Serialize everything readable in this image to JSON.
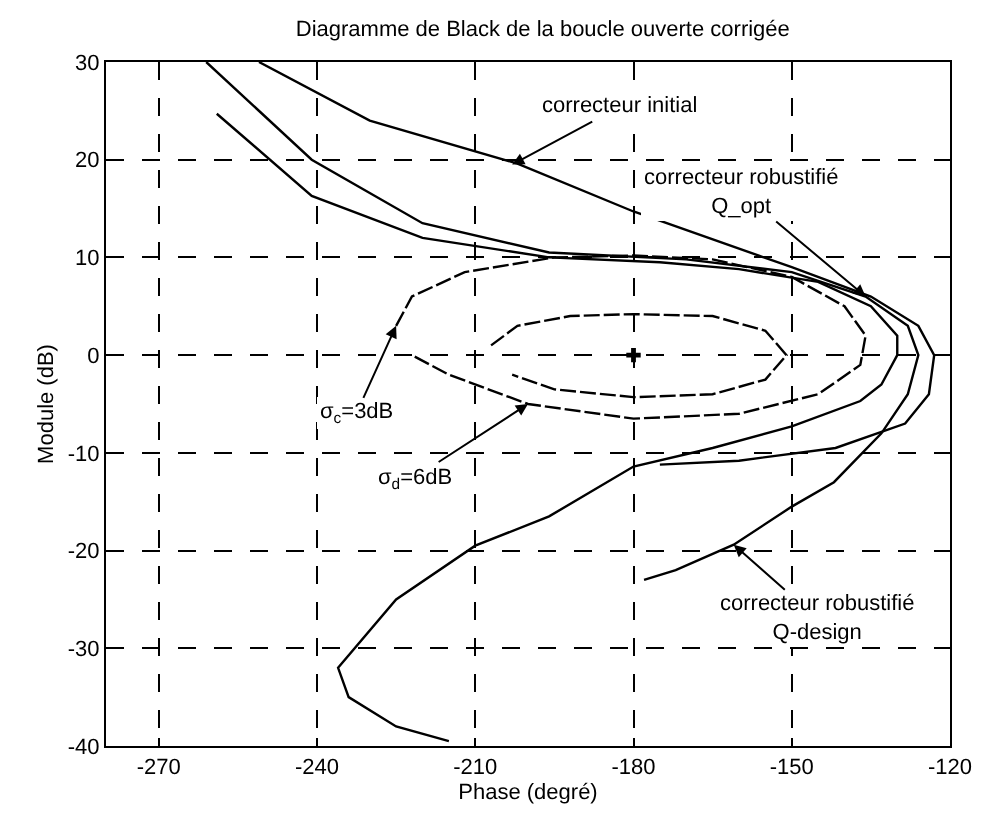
{
  "chart_data": {
    "type": "line",
    "title": "Diagramme de Black de la boucle ouverte corrigée",
    "xlabel": "Phase (degré)",
    "ylabel": "Module (dB)",
    "xlim": [
      -280,
      -120
    ],
    "xticks": [
      -270,
      -240,
      -210,
      -180,
      -150,
      -120
    ],
    "ylim": [
      -40,
      30
    ],
    "yticks": [
      -40,
      -30,
      -20,
      -10,
      0,
      10,
      20,
      30
    ],
    "grid": true,
    "marker": "none",
    "series": [
      {
        "color": "#000000",
        "line_style": "solid",
        "x": [
          -251,
          -230,
          -202,
          -180,
          -150,
          -135,
          -126,
          -123,
          -124,
          -128.5,
          -141.7,
          -160,
          -175
        ],
        "values": [
          30,
          24,
          19.6,
          14.7,
          9,
          6,
          3,
          0,
          -4,
          -7,
          -9.5,
          -10.8,
          -11.2
        ]
      },
      {
        "color": "#000000",
        "line_style": "solid",
        "x": [
          -261,
          -241,
          -220,
          -196,
          -170,
          -150,
          -136,
          -128,
          -126,
          -128,
          -133,
          -142,
          -150,
          -161,
          -172,
          -178
        ],
        "values": [
          30,
          20,
          13.5,
          10.5,
          9.8,
          8.5,
          6,
          3,
          0,
          -4,
          -8,
          -13,
          -15.5,
          -19.4,
          -22,
          -23
        ]
      },
      {
        "color": "#000000",
        "line_style": "solid",
        "x": [
          -259,
          -241,
          -220,
          -196,
          -175,
          -160,
          -145,
          -135,
          -130,
          -130,
          -133,
          -137,
          -150,
          -165,
          -180,
          -196,
          -210,
          -225,
          -236,
          -234,
          -225,
          -215
        ],
        "values": [
          24.7,
          16.3,
          12,
          10,
          9.5,
          8.8,
          7.5,
          5,
          2,
          0,
          -3,
          -4.7,
          -7.3,
          -9.5,
          -11.4,
          -16.5,
          -19.5,
          -25,
          -32,
          -35,
          -38,
          -39.5
        ]
      },
      {
        "color": "#000000",
        "line_style": "dashed",
        "x": [
          -225,
          -222,
          -212,
          -195,
          -180,
          -165,
          -150,
          -140,
          -136,
          -137,
          -145,
          -160,
          -180,
          -200,
          -215,
          -222
        ],
        "values": [
          3,
          6,
          8.5,
          10,
          10.2,
          9.8,
          8,
          5,
          2,
          -1,
          -4,
          -6,
          -6.5,
          -5,
          -2,
          0
        ]
      },
      {
        "color": "#000000",
        "line_style": "dashed",
        "x": [
          -207,
          -202,
          -192,
          -180,
          -165,
          -155,
          -151,
          -155,
          -165,
          -180,
          -195,
          -203
        ],
        "values": [
          1,
          3,
          4,
          4.2,
          4,
          2.5,
          0,
          -2.5,
          -4,
          -4.3,
          -3.5,
          -2
        ]
      },
      {
        "color": "#000000",
        "type": "scatter",
        "marker": "cross",
        "x": [
          -180
        ],
        "values": [
          0
        ]
      }
    ],
    "annotations": [
      {
        "text": "correcteur initial",
        "x": -203,
        "y": 19.5
      },
      {
        "text": "correcteur robustifié\nQ_opt",
        "x": -136,
        "y": 6
      },
      {
        "text": "σ$_{c}$=3dB",
        "x": -225,
        "y": 3
      },
      {
        "text": "σ$_{d}$=6dB",
        "x": -200,
        "y": -5
      },
      {
        "text": "correcteur robustifié\nQ-design",
        "x": -161,
        "y": -19.4
      }
    ]
  }
}
